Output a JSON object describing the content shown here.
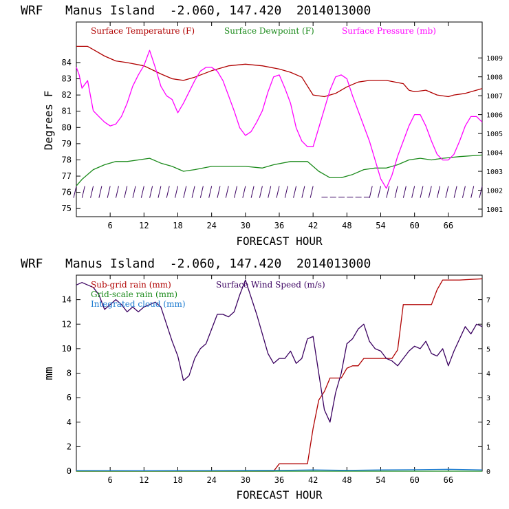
{
  "chart_data": [
    {
      "type": "line",
      "title": "WRF   Manus Island  -2.060, 147.420  2014013000",
      "xlabel": "FORECAST HOUR",
      "ylabel": "Degrees F",
      "y2label": "",
      "xlim": [
        0,
        72
      ],
      "ylim": [
        74.5,
        86.5
      ],
      "y2lim": [
        1000.6,
        1010.9
      ],
      "x_ticks": [
        6,
        12,
        18,
        24,
        30,
        36,
        42,
        48,
        54,
        60,
        66
      ],
      "y_ticks": [
        75,
        76,
        77,
        78,
        79,
        80,
        81,
        82,
        83,
        84
      ],
      "y2_ticks": [
        1001,
        1002,
        1003,
        1004,
        1005,
        1006,
        1007,
        1008,
        1009
      ],
      "grid": false,
      "legend_position": "top",
      "series": [
        {
          "name": "Surface Temperature (F)",
          "axis": "left",
          "color": "#b00000",
          "x": [
            0,
            2,
            3,
            5,
            7,
            9,
            12,
            15,
            17,
            19,
            21,
            24,
            27,
            30,
            33,
            36,
            38,
            40,
            42,
            44,
            46,
            48,
            50,
            52,
            55,
            58,
            59,
            60,
            62,
            64,
            66,
            67,
            69,
            72
          ],
          "values": [
            85.0,
            85.0,
            84.8,
            84.4,
            84.1,
            84.0,
            83.8,
            83.3,
            83.0,
            82.9,
            83.1,
            83.5,
            83.8,
            83.9,
            83.8,
            83.6,
            83.4,
            83.1,
            82.0,
            81.9,
            82.1,
            82.5,
            82.8,
            82.9,
            82.9,
            82.7,
            82.3,
            82.2,
            82.3,
            82.0,
            81.9,
            82.0,
            82.1,
            82.4
          ]
        },
        {
          "name": "Surface Dewpoint (F)",
          "axis": "left",
          "color": "#1a8a1a",
          "x": [
            0,
            1,
            3,
            5,
            7,
            9,
            11,
            13,
            15,
            17,
            19,
            21,
            24,
            27,
            30,
            33,
            35,
            38,
            41,
            43,
            45,
            47,
            49,
            51,
            53,
            55,
            57,
            59,
            61,
            63,
            65,
            68,
            72
          ],
          "values": [
            76.4,
            76.8,
            77.4,
            77.7,
            77.9,
            77.9,
            78.0,
            78.1,
            77.8,
            77.6,
            77.3,
            77.4,
            77.6,
            77.6,
            77.6,
            77.5,
            77.7,
            77.9,
            77.9,
            77.3,
            76.9,
            76.9,
            77.1,
            77.4,
            77.5,
            77.5,
            77.7,
            78.0,
            78.1,
            78.0,
            78.1,
            78.2,
            78.3
          ]
        },
        {
          "name": "Surface Pressure (mb)",
          "axis": "right",
          "color": "#ff00ff",
          "x": [
            0,
            0.5,
            1,
            2,
            3,
            4,
            5,
            6,
            7,
            8,
            9,
            10,
            11,
            12,
            13,
            14,
            15,
            16,
            17,
            18,
            19,
            20,
            21,
            22,
            23,
            24,
            25,
            26,
            27,
            28,
            29,
            30,
            31,
            32,
            33,
            34,
            35,
            36,
            37,
            38,
            39,
            40,
            41,
            42,
            43,
            44,
            45,
            46,
            47,
            48,
            49,
            50,
            51,
            52,
            53,
            54,
            55,
            56,
            57,
            58,
            59,
            60,
            61,
            62,
            63,
            64,
            65,
            66,
            67,
            68,
            69,
            70,
            71,
            72
          ],
          "values": [
            1008.5,
            1008.1,
            1007.4,
            1007.8,
            1006.2,
            1005.9,
            1005.6,
            1005.4,
            1005.5,
            1005.9,
            1006.6,
            1007.5,
            1008.1,
            1008.6,
            1009.4,
            1008.5,
            1007.5,
            1007.0,
            1006.8,
            1006.1,
            1006.6,
            1007.2,
            1007.8,
            1008.3,
            1008.5,
            1008.5,
            1008.3,
            1007.8,
            1007.0,
            1006.2,
            1005.3,
            1004.9,
            1005.1,
            1005.6,
            1006.2,
            1007.2,
            1008.0,
            1008.1,
            1007.4,
            1006.6,
            1005.3,
            1004.6,
            1004.3,
            1004.3,
            1005.3,
            1006.3,
            1007.3,
            1008.0,
            1008.1,
            1007.9,
            1007.0,
            1006.2,
            1005.4,
            1004.6,
            1003.6,
            1002.6,
            1002.1,
            1002.8,
            1003.8,
            1004.6,
            1005.4,
            1006.0,
            1006.0,
            1005.4,
            1004.6,
            1003.9,
            1003.6,
            1003.6,
            1003.9,
            1004.6,
            1005.4,
            1005.9,
            1005.9,
            1005.6
          ]
        }
      ],
      "wind_barbs_row_y": 76
    },
    {
      "type": "line",
      "title": "WRF   Manus Island  -2.060, 147.420  2014013000",
      "xlabel": "FORECAST HOUR",
      "ylabel": "mm",
      "y2label": "",
      "xlim": [
        0,
        72
      ],
      "ylim": [
        0,
        16
      ],
      "y2lim": [
        0,
        8
      ],
      "x_ticks": [
        6,
        12,
        18,
        24,
        30,
        36,
        42,
        48,
        54,
        60,
        66
      ],
      "y_ticks": [
        0,
        2,
        4,
        6,
        8,
        10,
        12,
        14
      ],
      "y2_ticks": [
        0,
        1,
        2,
        3,
        4,
        5,
        6,
        7
      ],
      "grid": false,
      "legend_position": "top",
      "series": [
        {
          "name": "Sub-grid rain (mm)",
          "axis": "left",
          "color": "#b00000",
          "x": [
            0,
            35,
            36,
            41,
            42,
            43,
            44,
            45,
            46,
            47,
            48,
            49,
            50,
            51,
            52,
            56,
            57,
            58,
            59,
            60,
            63,
            64,
            65,
            66,
            67,
            68,
            72
          ],
          "values": [
            0,
            0,
            0.6,
            0.6,
            3.5,
            5.8,
            6.5,
            7.6,
            7.6,
            7.6,
            8.4,
            8.6,
            8.6,
            9.2,
            9.2,
            9.2,
            9.9,
            13.6,
            13.6,
            13.6,
            13.6,
            14.8,
            15.6,
            15.6,
            15.6,
            15.6,
            15.7
          ]
        },
        {
          "name": "Grid-scale rain (mm)",
          "axis": "left",
          "color": "#1a8a1a",
          "x": [
            0,
            72
          ],
          "values": [
            0,
            0
          ]
        },
        {
          "name": "Integrated cloud (mm)",
          "axis": "left",
          "color": "#1a7ad0",
          "x": [
            0,
            12,
            24,
            36,
            42,
            48,
            54,
            60,
            66,
            72
          ],
          "values": [
            0.05,
            0.04,
            0.05,
            0.06,
            0.1,
            0.07,
            0.1,
            0.12,
            0.15,
            0.1
          ]
        },
        {
          "name": "Surface Wind Speed (m/s)",
          "axis": "right",
          "color": "#3a0060",
          "x": [
            0,
            1,
            2,
            3,
            4,
            5,
            6,
            7,
            8,
            9,
            10,
            11,
            12,
            13,
            14,
            15,
            16,
            17,
            18,
            19,
            20,
            21,
            22,
            23,
            24,
            25,
            26,
            27,
            28,
            29,
            30,
            31,
            32,
            33,
            34,
            35,
            36,
            37,
            38,
            39,
            40,
            41,
            42,
            43,
            44,
            45,
            46,
            47,
            48,
            49,
            50,
            51,
            52,
            53,
            54,
            55,
            56,
            57,
            58,
            59,
            60,
            61,
            62,
            63,
            64,
            65,
            66,
            67,
            68,
            69,
            70,
            71,
            72
          ],
          "values": [
            7.6,
            7.7,
            7.6,
            7.5,
            7.2,
            6.6,
            6.8,
            7.0,
            6.8,
            6.5,
            6.7,
            6.5,
            6.7,
            6.8,
            6.9,
            6.7,
            6.0,
            5.3,
            4.7,
            3.7,
            3.9,
            4.6,
            5.0,
            5.2,
            5.8,
            6.4,
            6.4,
            6.3,
            6.5,
            7.2,
            7.8,
            7.1,
            6.4,
            5.6,
            4.8,
            4.4,
            4.6,
            4.6,
            4.9,
            4.4,
            4.6,
            5.4,
            5.5,
            4.0,
            2.5,
            2.0,
            3.2,
            4.0,
            5.2,
            5.4,
            5.8,
            6.0,
            5.3,
            5.0,
            4.9,
            4.6,
            4.5,
            4.3,
            4.6,
            4.9,
            5.1,
            5.0,
            5.3,
            4.8,
            4.7,
            5.0,
            4.3,
            4.9,
            5.4,
            5.9,
            5.6,
            6.0,
            5.9
          ]
        }
      ]
    }
  ]
}
